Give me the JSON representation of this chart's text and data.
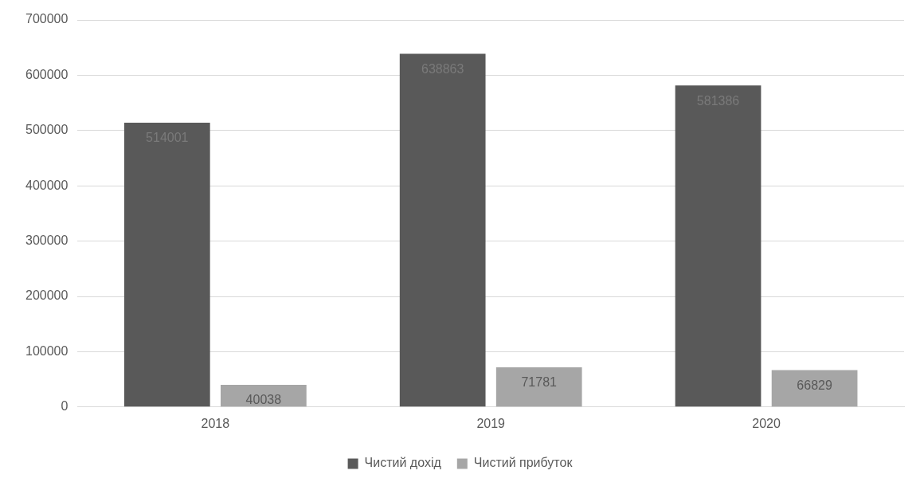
{
  "chart_data": {
    "type": "bar",
    "categories": [
      "2018",
      "2019",
      "2020"
    ],
    "series": [
      {
        "name": "Чистий дохід",
        "color": "#595959",
        "values": [
          514001,
          638863,
          581386
        ]
      },
      {
        "name": "Чистий прибуток",
        "color": "#a6a6a6",
        "values": [
          40038,
          71781,
          66829
        ]
      }
    ],
    "ylim": [
      0,
      700000
    ],
    "yticks": [
      0,
      100000,
      200000,
      300000,
      400000,
      500000,
      600000,
      700000
    ],
    "grid": "y",
    "legend": "bottom",
    "data_labels": true
  }
}
